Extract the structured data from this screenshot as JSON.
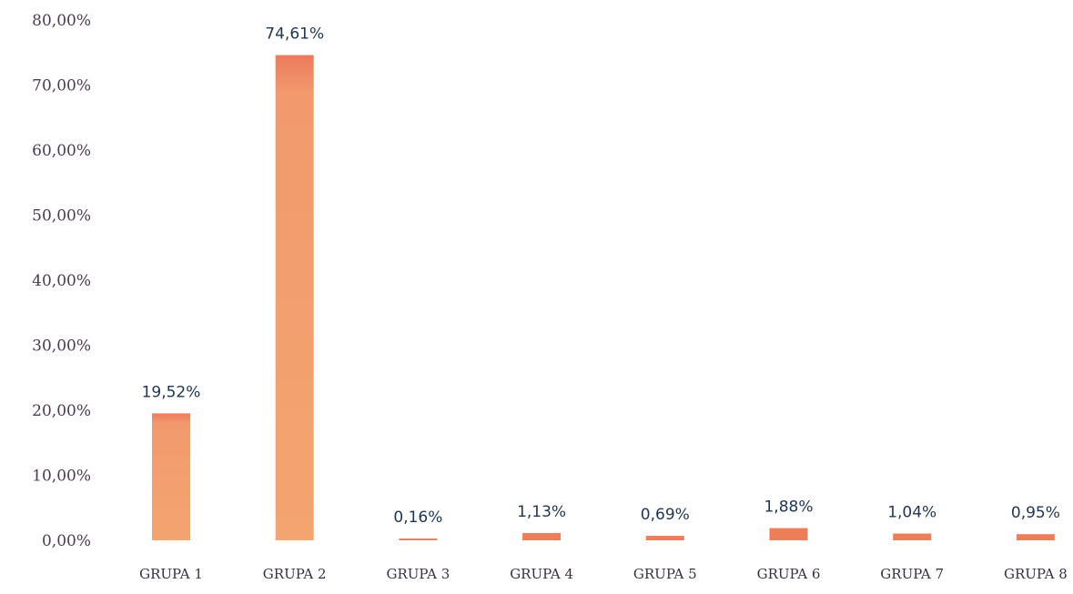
{
  "chart_data": {
    "type": "bar",
    "categories": [
      "GRUPA 1",
      "GRUPA 2",
      "GRUPA 3",
      "GRUPA 4",
      "GRUPA 5",
      "GRUPA 6",
      "GRUPA 7",
      "GRUPA 8"
    ],
    "values": [
      19.52,
      74.61,
      0.16,
      1.13,
      0.69,
      1.88,
      1.04,
      0.95
    ],
    "value_labels": [
      "19,52%",
      "74,61%",
      "0,16%",
      "1,13%",
      "0,69%",
      "1,88%",
      "1,04%",
      "0,95%"
    ],
    "y_ticks": [
      0,
      10,
      20,
      30,
      40,
      50,
      60,
      70,
      80
    ],
    "y_tick_labels": [
      "0,00%",
      "10,00%",
      "20,00%",
      "30,00%",
      "40,00%",
      "50,00%",
      "60,00%",
      "70,00%",
      "80,00%"
    ],
    "ylim": [
      0,
      80
    ],
    "grid": false,
    "legend": false,
    "bar_color": "#f2a070",
    "bar_color_dark": "#ec7f5a",
    "title": "",
    "xlabel": "",
    "ylabel": ""
  }
}
